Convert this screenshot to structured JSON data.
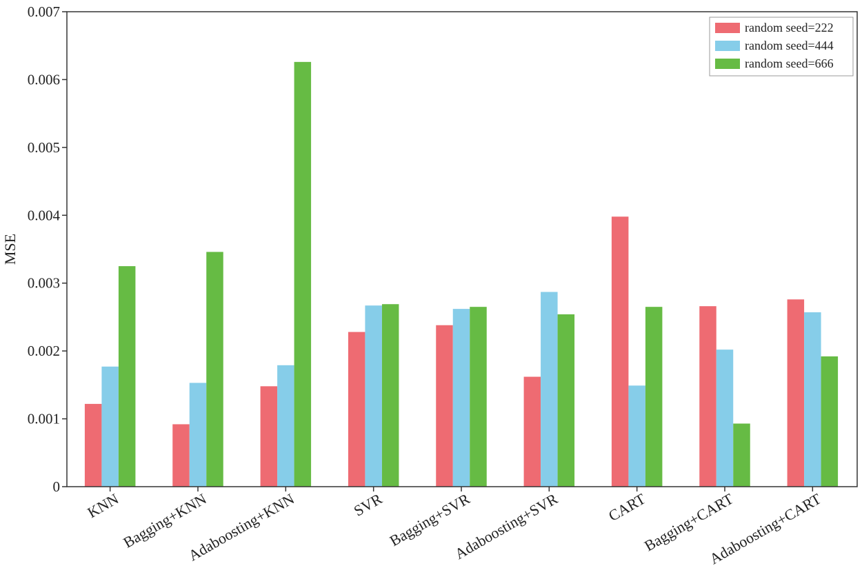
{
  "chart_data": {
    "type": "bar",
    "title": "",
    "xlabel": "",
    "ylabel": "MSE",
    "ylim": [
      0,
      0.007
    ],
    "yticks": [
      0,
      0.001,
      0.002,
      0.003,
      0.004,
      0.005,
      0.006,
      0.007
    ],
    "ytick_labels": [
      "0",
      "0.001",
      "0.002",
      "0.003",
      "0.004",
      "0.005",
      "0.006",
      "0.007"
    ],
    "grid": false,
    "legend_position": "top-right",
    "categories": [
      "KNN",
      "Bagging+KNN",
      "Adaboosting+KNN",
      "SVR",
      "Bagging+SVR",
      "Adaboosting+SVR",
      "CART",
      "Bagging+CART",
      "Adaboosting+CART"
    ],
    "series": [
      {
        "name": "random seed=222",
        "color": "#ee6b72",
        "values": [
          0.00122,
          0.00092,
          0.00148,
          0.00228,
          0.00238,
          0.00162,
          0.00398,
          0.00266,
          0.00276
        ]
      },
      {
        "name": "random seed=444",
        "color": "#86cde9",
        "values": [
          0.00177,
          0.00153,
          0.00179,
          0.00267,
          0.00262,
          0.00287,
          0.00149,
          0.00202,
          0.00257
        ]
      },
      {
        "name": "random seed=666",
        "color": "#66bb44",
        "values": [
          0.00325,
          0.00346,
          0.00626,
          0.00269,
          0.00265,
          0.00254,
          0.00265,
          0.00093,
          0.00192
        ]
      }
    ]
  }
}
